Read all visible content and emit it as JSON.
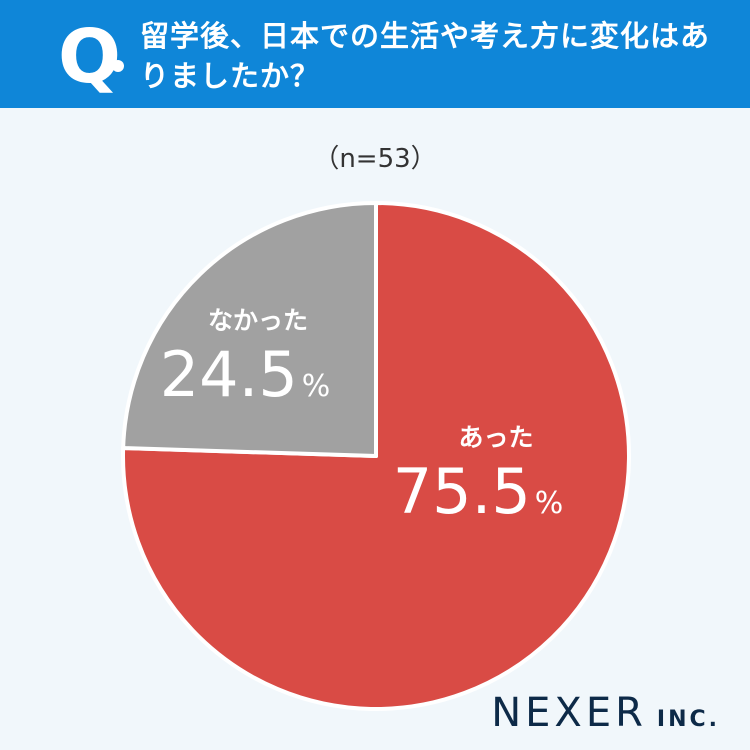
{
  "header": {
    "q_label": "Q",
    "question": "留学後、日本での生活や考え方に変化はありましたか？"
  },
  "sample": "（n=53）",
  "chart_data": {
    "type": "pie",
    "slices": [
      {
        "label": "あった",
        "value": 75.5,
        "color": "#d94b45"
      },
      {
        "label": "なかった",
        "value": 24.5,
        "color": "#a1a1a1"
      }
    ],
    "unit": "%",
    "start": "top, clockwise"
  },
  "footer": {
    "logo": "NEXER",
    "logo_suffix": "INC."
  }
}
